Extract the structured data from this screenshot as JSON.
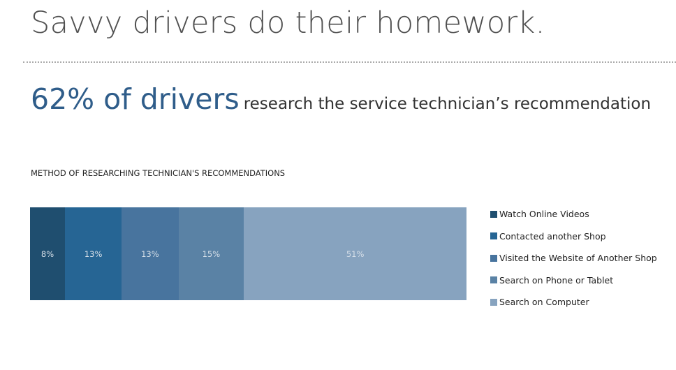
{
  "header": {
    "title": "Savvy drivers do their homework."
  },
  "headline": {
    "big": "62% of drivers",
    "sub": "research the service technician’s recommendation"
  },
  "chart_data": {
    "type": "bar",
    "stacked": true,
    "orientation": "horizontal",
    "title": "METHOD OF RESEARCHING TECHNICIAN'S RECOMMENDATIONS",
    "series": [
      {
        "name": "Watch Online Videos",
        "value": 8,
        "label": "8%",
        "color": "#1f4e6f"
      },
      {
        "name": "Contacted another Shop",
        "value": 13,
        "label": "13%",
        "color": "#266594"
      },
      {
        "name": "Visited the Website of Another Shop",
        "value": 13,
        "label": "13%",
        "color": "#48749e"
      },
      {
        "name": "Search on Phone or Tablet",
        "value": 15,
        "label": "15%",
        "color": "#5a82a5"
      },
      {
        "name": "Search on Computer",
        "value": 51,
        "label": "51%",
        "color": "#87a3bf"
      }
    ],
    "legend": "right"
  }
}
